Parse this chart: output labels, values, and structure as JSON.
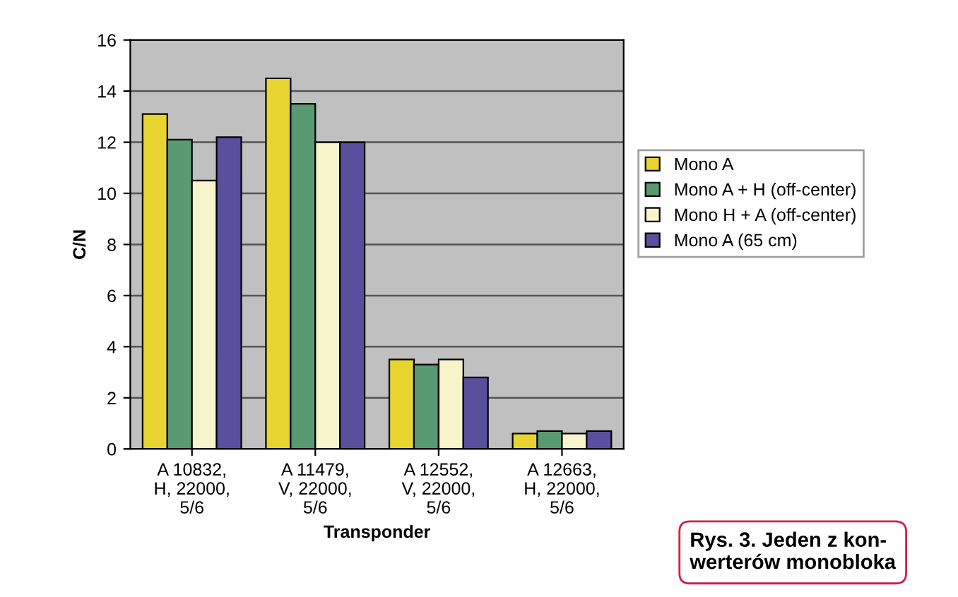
{
  "chart_data": {
    "type": "bar",
    "xlabel": "Transponder",
    "ylabel": "C/N",
    "categories": [
      "A 10832,\nH, 22000,\n5/6",
      "A 11479,\nV, 22000,\n5/6",
      "A 12552,\nV, 22000,\n5/6",
      "A 12663,\nH, 22000,\n5/6"
    ],
    "series": [
      {
        "name": "Mono A",
        "color": "#e8d430",
        "values": [
          13.1,
          14.5,
          3.5,
          0.6
        ]
      },
      {
        "name": "Mono A + H (off-center)",
        "color": "#5a9a72",
        "values": [
          12.1,
          13.5,
          3.3,
          0.7
        ]
      },
      {
        "name": "Mono H + A (off-center)",
        "color": "#f8f4cc",
        "values": [
          10.5,
          12,
          3.5,
          0.6
        ]
      },
      {
        "name": "Mono A (65 cm)",
        "color": "#5a4f9c",
        "values": [
          12.2,
          12,
          2.8,
          0.7
        ]
      }
    ],
    "ylim": [
      0,
      16
    ],
    "yticks": [
      0,
      2,
      4,
      6,
      8,
      10,
      12,
      14,
      16
    ],
    "grid": "y",
    "legend": "right",
    "annotations": [
      "Rys. 3. Jeden z kon-\nwerterów monobloka"
    ]
  }
}
